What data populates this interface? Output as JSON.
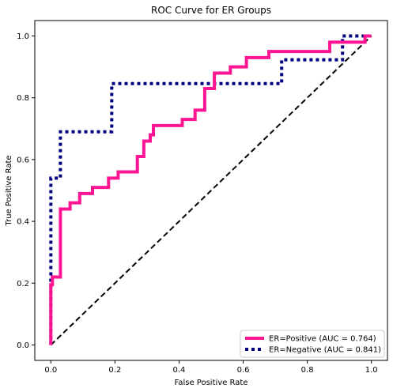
{
  "chart_data": {
    "type": "line",
    "title": "ROC Curve for ER Groups",
    "xlabel": "False Positive Rate",
    "ylabel": "True Positive Rate",
    "xlim": [
      -0.05,
      1.05
    ],
    "ylim": [
      -0.05,
      1.05
    ],
    "xticks": [
      0.0,
      0.2,
      0.4,
      0.6,
      0.8,
      1.0
    ],
    "yticks": [
      0.0,
      0.2,
      0.4,
      0.6,
      0.8,
      1.0
    ],
    "xtick_labels": [
      "0.0",
      "0.2",
      "0.4",
      "0.6",
      "0.8",
      "1.0"
    ],
    "ytick_labels": [
      "0.0",
      "0.2",
      "0.4",
      "0.6",
      "0.8",
      "1.0"
    ],
    "grid": false,
    "legend_position": "lower-right",
    "series": [
      {
        "name": "ER=Positive (AUC = 0.764)",
        "color": "#ff1493",
        "style": "solid",
        "x": [
          0.0,
          0.0,
          0.005,
          0.005,
          0.03,
          0.03,
          0.06,
          0.06,
          0.09,
          0.09,
          0.13,
          0.13,
          0.18,
          0.18,
          0.21,
          0.21,
          0.27,
          0.27,
          0.29,
          0.29,
          0.31,
          0.31,
          0.32,
          0.32,
          0.41,
          0.41,
          0.45,
          0.45,
          0.48,
          0.48,
          0.51,
          0.51,
          0.56,
          0.56,
          0.61,
          0.61,
          0.68,
          0.68,
          0.87,
          0.87,
          0.98,
          0.98,
          1.0
        ],
        "y": [
          0.0,
          0.195,
          0.195,
          0.22,
          0.22,
          0.44,
          0.44,
          0.46,
          0.46,
          0.49,
          0.49,
          0.51,
          0.51,
          0.54,
          0.54,
          0.56,
          0.56,
          0.61,
          0.61,
          0.66,
          0.66,
          0.68,
          0.68,
          0.71,
          0.71,
          0.73,
          0.73,
          0.76,
          0.76,
          0.83,
          0.83,
          0.88,
          0.88,
          0.9,
          0.9,
          0.93,
          0.93,
          0.95,
          0.95,
          0.98,
          0.98,
          1.0,
          1.0
        ]
      },
      {
        "name": "ER=Negative (AUC = 0.841)",
        "color": "#000080",
        "style": "dotted",
        "x": [
          0.0,
          0.0,
          0.03,
          0.03,
          0.19,
          0.19,
          0.72,
          0.72,
          0.91,
          0.91,
          1.0
        ],
        "y": [
          0.0,
          0.54,
          0.54,
          0.69,
          0.69,
          0.846,
          0.846,
          0.923,
          0.923,
          1.0,
          1.0
        ]
      },
      {
        "name": "",
        "color": "#000000",
        "style": "dashed",
        "x": [
          0.0,
          1.0
        ],
        "y": [
          0.0,
          1.0
        ]
      }
    ]
  }
}
